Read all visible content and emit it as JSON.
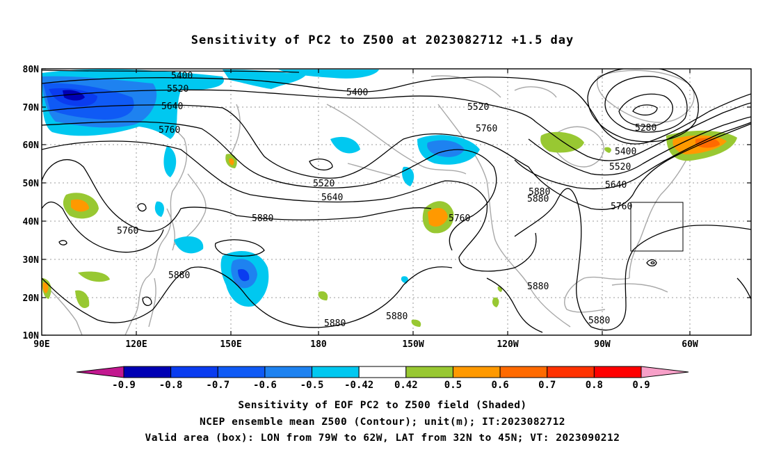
{
  "title": "Sensitivity of PC2 to Z500 at 2023082712 +1.5 day",
  "lat_labels": [
    "80N",
    "70N",
    "60N",
    "50N",
    "40N",
    "30N",
    "20N",
    "10N"
  ],
  "lon_labels": [
    "90E",
    "120E",
    "150E",
    "180",
    "150W",
    "120W",
    "90W",
    "60W"
  ],
  "colorbar": {
    "labels": [
      "-0.9",
      "-0.8",
      "-0.7",
      "-0.6",
      "-0.5",
      "-0.42",
      "0.42",
      "0.5",
      "0.6",
      "0.7",
      "0.8",
      "0.9"
    ],
    "colors": [
      "#c2188f",
      "#0000b4",
      "#0a3cf0",
      "#0f5af5",
      "#1e82f0",
      "#00c8f0",
      "#ffffff",
      "#98c832",
      "#ff9900",
      "#ff6a00",
      "#ff3200",
      "#ff0000",
      "#f7a0c8"
    ]
  },
  "contour_labels": [
    "5400",
    "5520",
    "5640",
    "5760",
    "5400",
    "5520",
    "5760",
    "5280",
    "5400",
    "5520",
    "5640",
    "5760",
    "5520",
    "5640",
    "5880",
    "5760",
    "5880",
    "5880",
    "5760",
    "5880",
    "5880",
    "5880",
    "5880",
    "5880",
    "5880"
  ],
  "captions": [
    "Sensitivity of EOF PC2 to Z500 field (Shaded)",
    "NCEP ensemble mean Z500 (Contour); unit(m); IT:2023082712",
    "Valid area (box): LON from 79W to 62W, LAT from 32N to 45N; VT: 2023090212"
  ]
}
